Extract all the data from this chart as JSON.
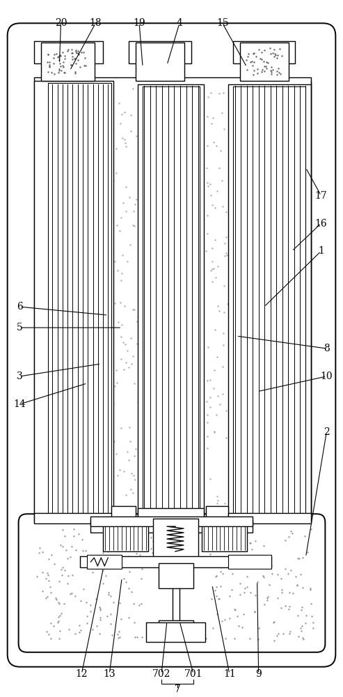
{
  "bg_color": "#ffffff",
  "lw": 1.0,
  "lw_thick": 1.4,
  "lw_thin": 0.6,
  "fig_w": 4.93,
  "fig_h": 10.0,
  "dpi": 100
}
